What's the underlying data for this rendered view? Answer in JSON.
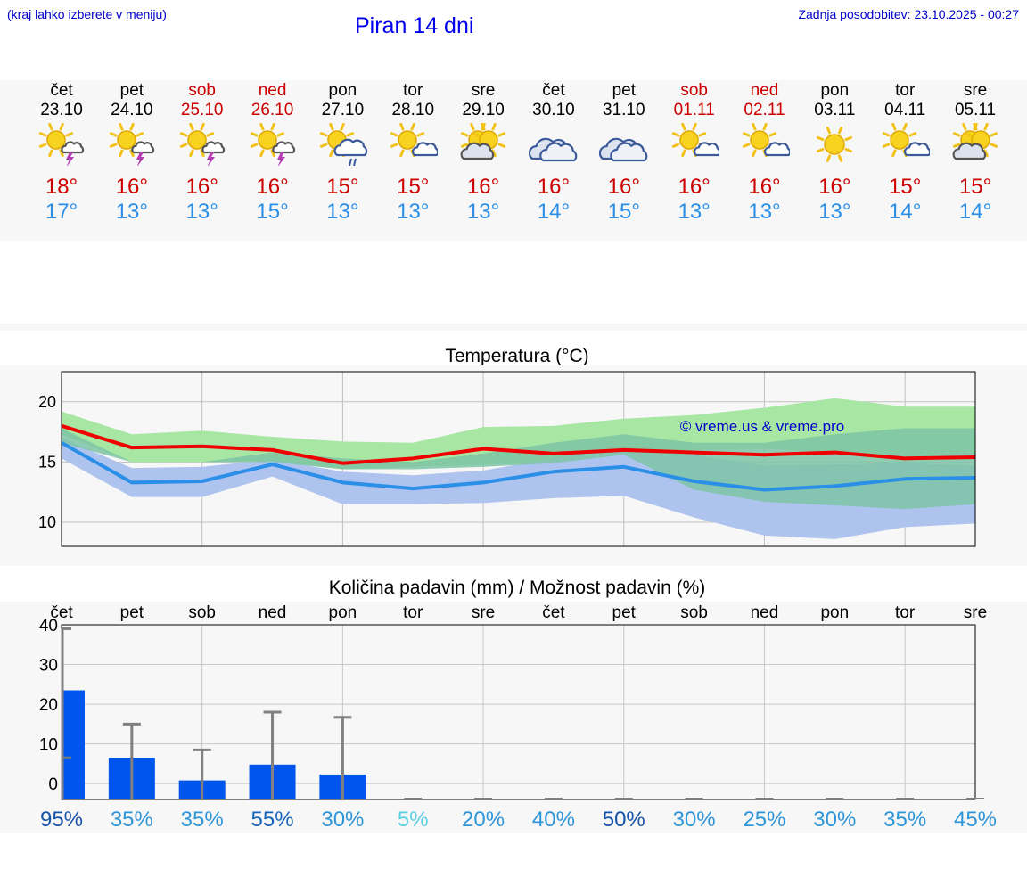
{
  "header": {
    "hint": "(kraj lahko izberete v meniju)",
    "title": "Piran 14 dni",
    "updated": "Zadnja posodobitev: 23.10.2025 - 00:27"
  },
  "days": [
    {
      "dow": "čet",
      "date": "23.10",
      "weekend": false,
      "icon": "sun-thunderstorm-icon",
      "tmax": "18°",
      "tmin": "17°"
    },
    {
      "dow": "pet",
      "date": "24.10",
      "weekend": false,
      "icon": "sun-thunderstorm-icon",
      "tmax": "16°",
      "tmin": "13°"
    },
    {
      "dow": "sob",
      "date": "25.10",
      "weekend": true,
      "icon": "sun-thunderstorm-icon",
      "tmax": "16°",
      "tmin": "13°"
    },
    {
      "dow": "ned",
      "date": "26.10",
      "weekend": true,
      "icon": "sun-thunderstorm-icon",
      "tmax": "16°",
      "tmin": "15°"
    },
    {
      "dow": "pon",
      "date": "27.10",
      "weekend": false,
      "icon": "sun-rain-icon",
      "tmax": "15°",
      "tmin": "13°"
    },
    {
      "dow": "tor",
      "date": "28.10",
      "weekend": false,
      "icon": "sun-small-cloud-icon",
      "tmax": "15°",
      "tmin": "13°"
    },
    {
      "dow": "sre",
      "date": "29.10",
      "weekend": false,
      "icon": "sun-grey-cloud-icon",
      "tmax": "16°",
      "tmin": "13°"
    },
    {
      "dow": "čet",
      "date": "30.10",
      "weekend": false,
      "icon": "cloudy-icon",
      "tmax": "16°",
      "tmin": "14°"
    },
    {
      "dow": "pet",
      "date": "31.10",
      "weekend": false,
      "icon": "cloudy-icon",
      "tmax": "16°",
      "tmin": "15°"
    },
    {
      "dow": "sob",
      "date": "01.11",
      "weekend": true,
      "icon": "sun-small-cloud-icon",
      "tmax": "16°",
      "tmin": "13°"
    },
    {
      "dow": "ned",
      "date": "02.11",
      "weekend": true,
      "icon": "sun-small-cloud-icon",
      "tmax": "16°",
      "tmin": "13°"
    },
    {
      "dow": "pon",
      "date": "03.11",
      "weekend": false,
      "icon": "sun-icon",
      "tmax": "16°",
      "tmin": "13°"
    },
    {
      "dow": "tor",
      "date": "04.11",
      "weekend": false,
      "icon": "sun-small-cloud-icon",
      "tmax": "15°",
      "tmin": "14°"
    },
    {
      "dow": "sre",
      "date": "05.11",
      "weekend": false,
      "icon": "sun-grey-cloud-icon",
      "tmax": "15°",
      "tmin": "14°"
    }
  ],
  "colors": {
    "weekend": "#cc0000",
    "tmax": "#cc0000",
    "tmin": "#2b8fe8",
    "max_line": "#ee0000",
    "min_line": "#2b8fe8",
    "max_band": "#a8e6a4",
    "min_band": "#aec4ef",
    "overlap_band": "#7cc4a4",
    "precip_bar": "#0055ee",
    "whisker": "#808080"
  },
  "chart_data": [
    {
      "type": "line",
      "title": "Temperatura (°C)",
      "watermark": "© vreme.us & vreme.pro",
      "ylim": [
        8,
        22.5
      ],
      "yticks": [
        10,
        15,
        20
      ],
      "grid": true,
      "series": [
        {
          "values": [
            18,
            16.2,
            16.3,
            16,
            14.9,
            15.3,
            16.1,
            15.7,
            16,
            15.8,
            15.6,
            15.8,
            15.3,
            15.4
          ],
          "band": [
            [
              19.2,
              17.3
            ],
            [
              17.3,
              15
            ],
            [
              17.6,
              15
            ],
            [
              17.1,
              15.1
            ],
            [
              16.7,
              14.4
            ],
            [
              16.6,
              14.6
            ],
            [
              17.9,
              14.8
            ],
            [
              18,
              14.9
            ],
            [
              18.6,
              15.6
            ],
            [
              18.9,
              16
            ],
            [
              19.5,
              16.1
            ],
            [
              20.3,
              15.8
            ],
            [
              19.6,
              15.2
            ],
            [
              19.6,
              15.2
            ]
          ]
        },
        {
          "values": [
            16.6,
            13.3,
            13.4,
            14.8,
            13.3,
            12.8,
            13.3,
            14.2,
            14.6,
            13.4,
            12.7,
            13,
            13.6,
            13.7
          ],
          "band": [
            [
              17,
              15.3
            ],
            [
              14.5,
              12.1
            ],
            [
              14.6,
              12.1
            ],
            [
              15.2,
              13.8
            ],
            [
              14.2,
              11.5
            ],
            [
              13.9,
              11.5
            ],
            [
              14.3,
              11.6
            ],
            [
              15.3,
              12
            ],
            [
              16.2,
              12.2
            ],
            [
              15.6,
              10.4
            ],
            [
              14.7,
              8.9
            ],
            [
              14.8,
              8.6
            ],
            [
              14.9,
              9.6
            ],
            [
              14.7,
              9.9
            ]
          ]
        }
      ],
      "overlap_band": [
        [
          17.8,
          16.6
        ],
        [
          15,
          15
        ],
        [
          15,
          15
        ],
        [
          15.8,
          15
        ],
        [
          15.3,
          14.4
        ],
        [
          15,
          14.4
        ],
        [
          15.7,
          14.6
        ],
        [
          16.6,
          14.9
        ],
        [
          17.3,
          15.6
        ],
        [
          16.6,
          12.7
        ],
        [
          16.6,
          11.7
        ],
        [
          17.3,
          11.4
        ],
        [
          17.8,
          11.1
        ],
        [
          17.8,
          11.5
        ]
      ]
    },
    {
      "type": "bar",
      "title": "Količina padavin (mm) / Možnost padavin (%)",
      "categories": [
        "čet",
        "pet",
        "sob",
        "ned",
        "pon",
        "tor",
        "sre",
        "čet",
        "pet",
        "sob",
        "ned",
        "pon",
        "tor",
        "sre"
      ],
      "ylim": [
        -4,
        40
      ],
      "yticks": [
        0,
        10,
        20,
        30,
        40
      ],
      "values": [
        23.5,
        6.5,
        0.8,
        4.8,
        2.3,
        0,
        0,
        0,
        0,
        0,
        0,
        0,
        0,
        0
      ],
      "error_high": [
        39,
        15,
        8.5,
        18,
        16.7,
        0,
        0,
        0,
        0,
        0,
        0,
        0,
        0,
        0
      ],
      "error_low": [
        6.5,
        0,
        0,
        0,
        0,
        0,
        0,
        0,
        0,
        0,
        0,
        0,
        0,
        0
      ],
      "probability": [
        "95%",
        "35%",
        "35%",
        "55%",
        "30%",
        "5%",
        "20%",
        "40%",
        "50%",
        "30%",
        "25%",
        "30%",
        "35%",
        "45%"
      ],
      "probability_colors": [
        "#1552a8",
        "#2e95d8",
        "#2e95d8",
        "#1665b8",
        "#2e95d8",
        "#5ad0e4",
        "#2e95d8",
        "#2e95d8",
        "#1552a8",
        "#2e95d8",
        "#2e95d8",
        "#2e95d8",
        "#2e95d8",
        "#2e95d8"
      ]
    }
  ]
}
